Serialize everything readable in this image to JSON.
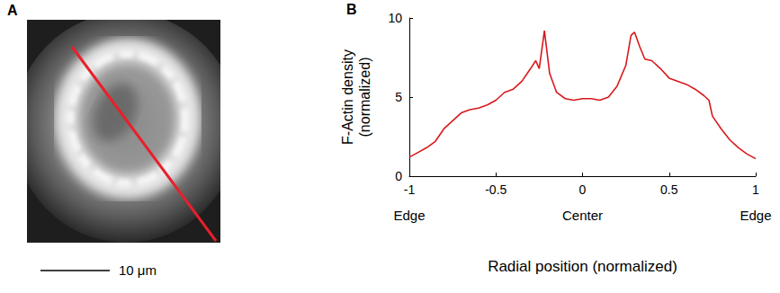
{
  "image_panel": {
    "label": "A",
    "scale_bar_label": "10 μm",
    "line_color": "#e8202a"
  },
  "chart_data": {
    "type": "line",
    "panel_label": "B",
    "x_label": "Radial position (normalized)",
    "y_label": "F-Actin density (normalized)",
    "annotations": [
      {
        "x": -1,
        "text": "Edge"
      },
      {
        "x": 0,
        "text": "Center"
      },
      {
        "x": 1,
        "text": "Edge"
      }
    ],
    "x": [
      -1,
      -0.95,
      -0.9,
      -0.85,
      -0.8,
      -0.75,
      -0.7,
      -0.65,
      -0.6,
      -0.55,
      -0.5,
      -0.45,
      -0.4,
      -0.35,
      -0.3,
      -0.27,
      -0.25,
      -0.22,
      -0.19,
      -0.15,
      -0.1,
      -0.05,
      0,
      0.05,
      0.1,
      0.15,
      0.2,
      0.25,
      0.28,
      0.3,
      0.33,
      0.36,
      0.4,
      0.45,
      0.5,
      0.55,
      0.6,
      0.65,
      0.7,
      0.73,
      0.75,
      0.8,
      0.85,
      0.9,
      0.95,
      1
    ],
    "values": [
      1.2,
      1.5,
      1.8,
      2.2,
      3.0,
      3.5,
      4.0,
      4.2,
      4.3,
      4.5,
      4.8,
      5.3,
      5.5,
      6.0,
      6.8,
      7.3,
      6.8,
      9.2,
      6.5,
      5.3,
      4.9,
      4.8,
      4.9,
      4.9,
      4.8,
      5.0,
      5.7,
      7.0,
      8.9,
      9.1,
      8.2,
      7.4,
      7.3,
      6.8,
      6.2,
      6.0,
      5.8,
      5.5,
      5.1,
      4.8,
      3.8,
      3.0,
      2.3,
      1.8,
      1.4,
      1.1
    ],
    "color": "#d7191c",
    "xlim": [
      -1,
      1
    ],
    "xticks": [
      -1,
      -0.5,
      0,
      0.5,
      1
    ],
    "ylim": [
      0,
      10
    ],
    "yticks": [
      0,
      5,
      10
    ],
    "grid": false
  }
}
